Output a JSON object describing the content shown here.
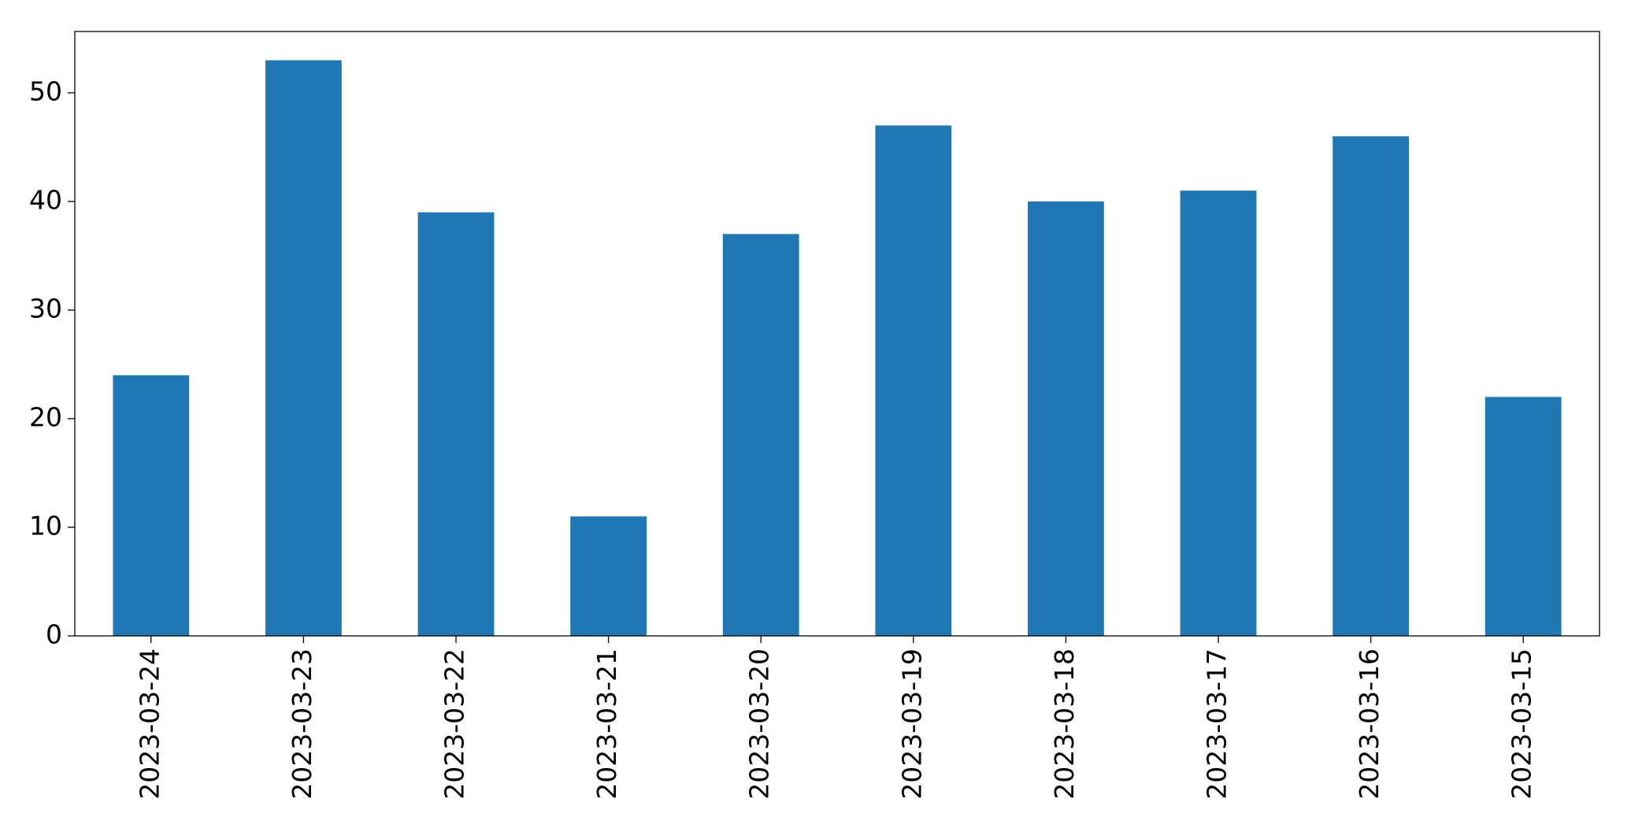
{
  "chart_data": {
    "type": "bar",
    "categories": [
      "2023-03-24",
      "2023-03-23",
      "2023-03-22",
      "2023-03-21",
      "2023-03-20",
      "2023-03-19",
      "2023-03-18",
      "2023-03-17",
      "2023-03-16",
      "2023-03-15"
    ],
    "values": [
      24,
      53,
      39,
      11,
      37,
      47,
      40,
      41,
      46,
      22
    ],
    "color": "#1f77b4",
    "ylim": [
      0,
      55.65
    ],
    "yticks": [
      0,
      10,
      20,
      30,
      40,
      50
    ],
    "grid": false
  }
}
